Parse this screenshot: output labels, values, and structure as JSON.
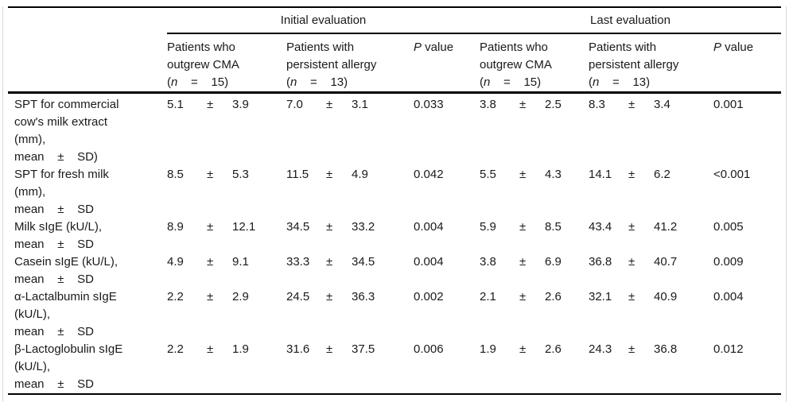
{
  "colors": {
    "rule": "#000000",
    "frame_edge": "#d9d9d9",
    "text": "#1a1a1a",
    "background": "#ffffff"
  },
  "table": {
    "group_headers": [
      {
        "label": "Initial evaluation"
      },
      {
        "label": "Last evaluation"
      }
    ],
    "column_headers": [
      {
        "line1": "Patients who",
        "line2": "outgrew CMA",
        "paren": "(",
        "n": "n",
        "eq": "    =    15)"
      },
      {
        "line1": "Patients with",
        "line2": "persistent allergy",
        "paren": "(",
        "n": "n",
        "eq": "    =    13)"
      },
      {
        "p": "P",
        "label": " value"
      },
      {
        "line1": "Patients who",
        "line2": "outgrew CMA",
        "paren": "(",
        "n": "n",
        "eq": "    =    15)"
      },
      {
        "line1": "Patients with",
        "line2": "persistent allergy",
        "paren": "(",
        "n": "n",
        "eq": "    =    13)"
      },
      {
        "p": "P",
        "label": " value"
      }
    ],
    "rows": [
      {
        "label_lines": [
          "SPT for commercial",
          "cow's milk extract",
          "(mm),",
          "mean    ±    SD)"
        ],
        "cells": [
          {
            "mean": "5.1",
            "pm": "±",
            "sd": "3.9"
          },
          {
            "mean": "7.0",
            "pm": "±",
            "sd": "3.1"
          },
          {
            "p": "0.033"
          },
          {
            "mean": "3.8",
            "pm": "±",
            "sd": "2.5"
          },
          {
            "mean": "8.3",
            "pm": "±",
            "sd": "3.4"
          },
          {
            "p": "0.001"
          }
        ]
      },
      {
        "label_lines": [
          "SPT for fresh milk",
          "(mm),",
          "mean    ±    SD"
        ],
        "cells": [
          {
            "mean": "8.5",
            "pm": "±",
            "sd": "5.3"
          },
          {
            "mean": "11.5",
            "pm": "±",
            "sd": "4.9"
          },
          {
            "p": "0.042"
          },
          {
            "mean": "5.5",
            "pm": "±",
            "sd": "4.3"
          },
          {
            "mean": "14.1",
            "pm": "±",
            "sd": "6.2"
          },
          {
            "p": "<0.001"
          }
        ]
      },
      {
        "label_lines": [
          "Milk sIgE (kU/L),",
          "mean    ±    SD"
        ],
        "cells": [
          {
            "mean": "8.9",
            "pm": "±",
            "sd": "12.1"
          },
          {
            "mean": "34.5",
            "pm": "±",
            "sd": "33.2"
          },
          {
            "p": "0.004"
          },
          {
            "mean": "5.9",
            "pm": "±",
            "sd": "8.5"
          },
          {
            "mean": "43.4",
            "pm": "±",
            "sd": "41.2"
          },
          {
            "p": "0.005"
          }
        ]
      },
      {
        "label_lines": [
          "Casein sIgE (kU/L),",
          "mean    ±    SD"
        ],
        "cells": [
          {
            "mean": "4.9",
            "pm": "±",
            "sd": "9.1"
          },
          {
            "mean": "33.3",
            "pm": "±",
            "sd": "34.5"
          },
          {
            "p": "0.004"
          },
          {
            "mean": "3.8",
            "pm": "±",
            "sd": "6.9"
          },
          {
            "mean": "36.8",
            "pm": "±",
            "sd": "40.7"
          },
          {
            "p": "0.009"
          }
        ]
      },
      {
        "label_lines": [
          "α-Lactalbumin sIgE",
          "(kU/L),",
          "mean    ±    SD"
        ],
        "cells": [
          {
            "mean": "2.2",
            "pm": "±",
            "sd": "2.9"
          },
          {
            "mean": "24.5",
            "pm": "±",
            "sd": "36.3"
          },
          {
            "p": "0.002"
          },
          {
            "mean": "2.1",
            "pm": "±",
            "sd": "2.6"
          },
          {
            "mean": "32.1",
            "pm": "±",
            "sd": "40.9"
          },
          {
            "p": "0.004"
          }
        ]
      },
      {
        "label_lines": [
          "β-Lactoglobulin sIgE",
          "(kU/L),",
          "mean    ±    SD"
        ],
        "cells": [
          {
            "mean": "2.2",
            "pm": "±",
            "sd": "1.9"
          },
          {
            "mean": "31.6",
            "pm": "±",
            "sd": "37.5"
          },
          {
            "p": "0.006"
          },
          {
            "mean": "1.9",
            "pm": "±",
            "sd": "2.6"
          },
          {
            "mean": "24.3",
            "pm": "±",
            "sd": "36.8"
          },
          {
            "p": "0.012"
          }
        ]
      }
    ]
  }
}
